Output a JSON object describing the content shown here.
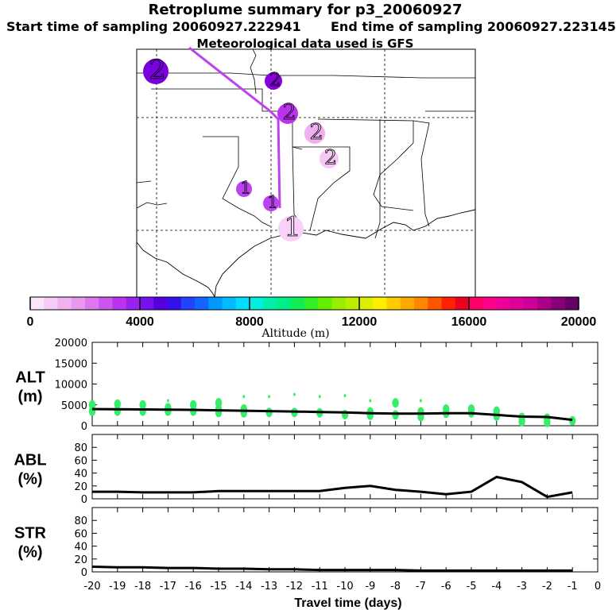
{
  "header": {
    "title": "Retroplume summary for p3_20060927",
    "start": "Start time of sampling 20060927.222941",
    "end": "End time of sampling 20060927.223145",
    "met": "Meteorological data used is GFS"
  },
  "colors": {
    "line": "#000000",
    "alt_marker": "#33ee66",
    "track": "#bb44ee"
  },
  "map_markers": [
    {
      "label": "2",
      "color": "#7700dd"
    },
    {
      "label": "2",
      "color": "#8800dd"
    },
    {
      "label": "2",
      "color": "#bb33ee"
    },
    {
      "label": "2",
      "color": "#f0b0f0"
    },
    {
      "label": "2",
      "color": "#f5c8f5"
    },
    {
      "label": "1",
      "color": "#bb44ee"
    },
    {
      "label": "1",
      "color": "#bb44ee"
    },
    {
      "label": "1",
      "color": "#f8d0f8"
    }
  ],
  "colorbar": {
    "label": "Altitude (m)",
    "ticks": [
      "0",
      "4000",
      "8000",
      "12000",
      "16000",
      "20000"
    ],
    "colors": [
      "#fbe5fb",
      "#f5ccf5",
      "#efb2ef",
      "#e898ee",
      "#dd77ee",
      "#cc55ee",
      "#bb33ee",
      "#9922ee",
      "#7711ee",
      "#5500dd",
      "#3311ee",
      "#2244ff",
      "#1166ff",
      "#0099ff",
      "#00bbff",
      "#00ddff",
      "#00eedd",
      "#00eeaa",
      "#00ee88",
      "#11ee55",
      "#33ee22",
      "#66ee00",
      "#99ee00",
      "#bbee00",
      "#ddee00",
      "#ffee00",
      "#ffcc00",
      "#ffaa00",
      "#ff8800",
      "#ff5500",
      "#ff2200",
      "#ee0022",
      "#ff0066",
      "#ff0088",
      "#ee0099",
      "#dd0099",
      "#cc0099",
      "#aa0088",
      "#880077",
      "#660066"
    ]
  },
  "chart_data": [
    {
      "type": "line",
      "ylabel": "ALT\n(m)",
      "ylabel_lines": [
        "ALT",
        "(m)"
      ],
      "x": [
        -20,
        -19,
        -18,
        -17,
        -16,
        -15,
        -14,
        -13,
        -12,
        -11,
        -10,
        -9,
        -8,
        -7,
        -6,
        -5,
        -4,
        -3,
        -2,
        -1
      ],
      "values": [
        4000,
        3950,
        3900,
        3850,
        3800,
        3700,
        3600,
        3500,
        3400,
        3300,
        3200,
        3000,
        2900,
        2900,
        3000,
        3000,
        2600,
        2200,
        2100,
        1400
      ],
      "ylim": [
        0,
        20000
      ],
      "yticks": [
        "0",
        "5000",
        "10000",
        "15000",
        "20000"
      ],
      "scatter": [
        [
          -20,
          5000
        ],
        [
          -20,
          3500
        ],
        [
          -19,
          5200
        ],
        [
          -19,
          3500
        ],
        [
          -18,
          5000
        ],
        [
          -18,
          3500
        ],
        [
          -17,
          6000
        ],
        [
          -17,
          4300
        ],
        [
          -17,
          3500
        ],
        [
          -16,
          5000
        ],
        [
          -16,
          3500
        ],
        [
          -15,
          5500
        ],
        [
          -15,
          4000
        ],
        [
          -15,
          3200
        ],
        [
          -14,
          7000
        ],
        [
          -14,
          4000
        ],
        [
          -14,
          3100
        ],
        [
          -13,
          7000
        ],
        [
          -13,
          3200
        ],
        [
          -12,
          7500
        ],
        [
          -12,
          3200
        ],
        [
          -11,
          7000
        ],
        [
          -11,
          3100
        ],
        [
          -10,
          7200
        ],
        [
          -10,
          2700
        ],
        [
          -9,
          6000
        ],
        [
          -9,
          3300
        ],
        [
          -9,
          2500
        ],
        [
          -8,
          5500
        ],
        [
          -8,
          2600
        ],
        [
          -7,
          6000
        ],
        [
          -7,
          3300
        ],
        [
          -7,
          2200
        ],
        [
          -6,
          4000
        ],
        [
          -6,
          3000
        ],
        [
          -5,
          4000
        ],
        [
          -5,
          3100
        ],
        [
          -4,
          3500
        ],
        [
          -4,
          2300
        ],
        [
          -3,
          2000
        ],
        [
          -3,
          1000
        ],
        [
          -2,
          1800
        ],
        [
          -2,
          800
        ],
        [
          -1,
          1200
        ]
      ]
    },
    {
      "type": "line",
      "ylabel": "ABL\n(%)",
      "ylabel_lines": [
        "ABL",
        "(%)"
      ],
      "x": [
        -20,
        -19,
        -18,
        -17,
        -16,
        -15,
        -14,
        -13,
        -12,
        -11,
        -10,
        -9,
        -8,
        -7,
        -6,
        -5,
        -4,
        -3,
        -2,
        -1
      ],
      "values": [
        11,
        11,
        10,
        10,
        10,
        12,
        12,
        12,
        12,
        12,
        17,
        20,
        14,
        11,
        7,
        11,
        34,
        26,
        3,
        10
      ],
      "ylim": [
        0,
        100
      ],
      "yticks": [
        "0",
        "20",
        "40",
        "60",
        "80"
      ]
    },
    {
      "type": "line",
      "ylabel": "STR\n(%)",
      "ylabel_lines": [
        "STR",
        "(%)"
      ],
      "x": [
        -20,
        -19,
        -18,
        -17,
        -16,
        -15,
        -14,
        -13,
        -12,
        -11,
        -10,
        -9,
        -8,
        -7,
        -6,
        -5,
        -4,
        -3,
        -2,
        -1
      ],
      "values": [
        8,
        7,
        7,
        6,
        6,
        5,
        5,
        4,
        4,
        3,
        3,
        3,
        3,
        2,
        2,
        2,
        2,
        2,
        2,
        2
      ],
      "ylim": [
        0,
        100
      ],
      "yticks": [
        "0",
        "20",
        "40",
        "60",
        "80"
      ],
      "xlabel": "Travel time (days)",
      "xticks": [
        "-20",
        "-19",
        "-18",
        "-17",
        "-16",
        "-15",
        "-14",
        "-13",
        "-12",
        "-11",
        "-10",
        "-9",
        "-8",
        "-7",
        "-6",
        "-5",
        "-4",
        "-3",
        "-2",
        "-1",
        "0"
      ]
    }
  ]
}
